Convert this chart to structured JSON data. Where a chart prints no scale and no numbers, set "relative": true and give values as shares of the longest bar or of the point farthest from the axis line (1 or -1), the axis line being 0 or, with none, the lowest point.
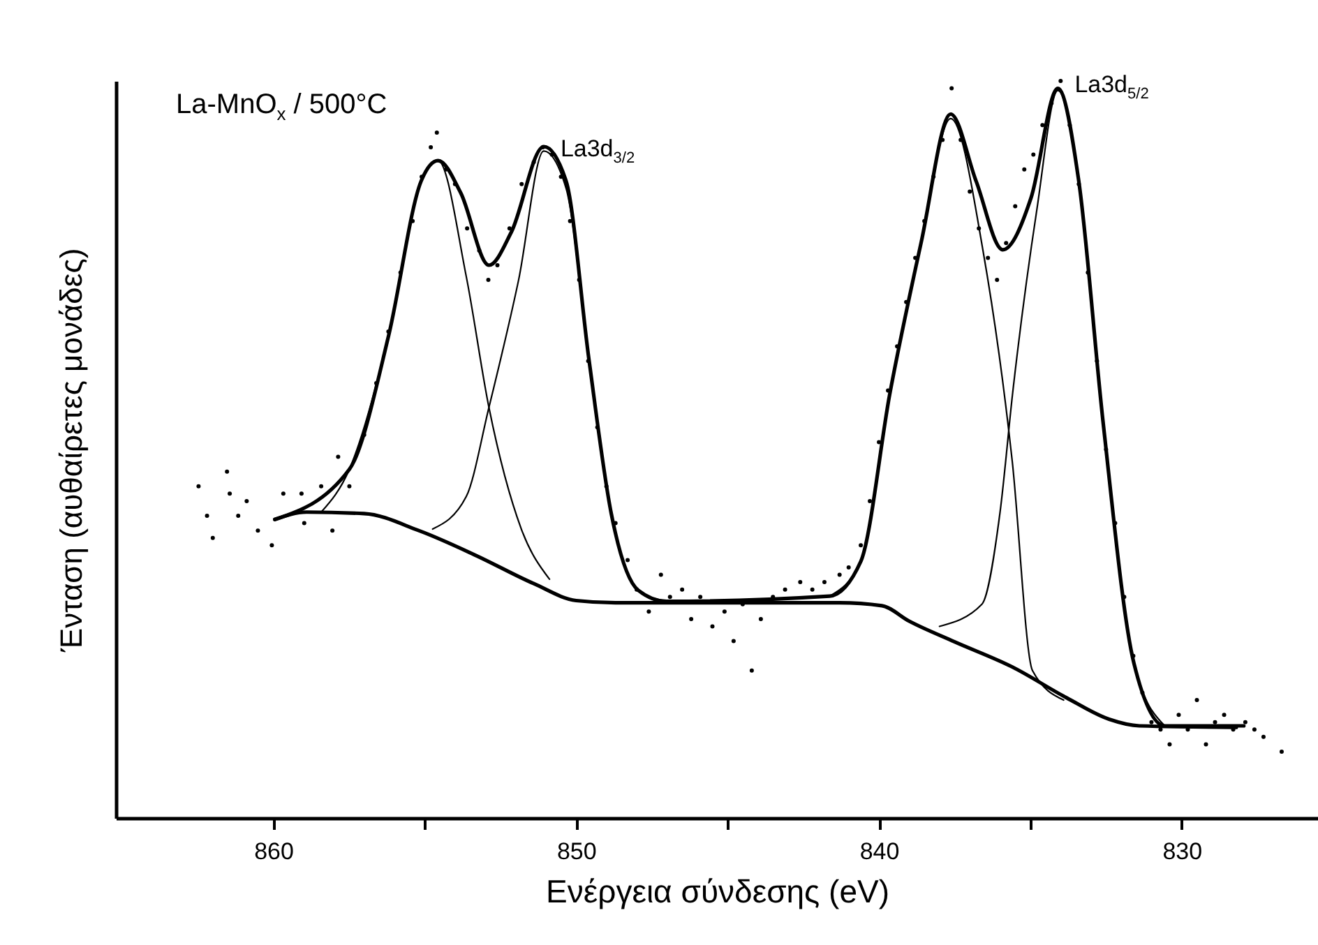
{
  "chart_data": {
    "type": "line",
    "title": "La-MnO$_{x}$ / 500°C",
    "xlabel": "Ενέργεια σύνδεσης (eV)",
    "ylabel": "Ένταση (αυθαίρετες μονάδες)",
    "relative": true,
    "xlim": [
      865.2,
      825.5
    ],
    "xticks": [
      860,
      {
        "value": 855,
        "label": null
      },
      850,
      {
        "value": 845,
        "label": null
      },
      840,
      {
        "value": 835,
        "label": null
      },
      830
    ],
    "annotations": [
      {
        "text": "La3d$_{3/2}$",
        "x": 851.07,
        "y": 0.91
      },
      {
        "text": "La3d$_{5/2}$",
        "x": 834.09,
        "y": 0.996
      }
    ],
    "series": [
      {
        "type": "scatter",
        "marker": "circle",
        "color": "#000000",
        "x": [
          862.47,
          862.19,
          862.0,
          861.53,
          861.44,
          861.16,
          860.88,
          860.51,
          860.05,
          859.67,
          859.07,
          858.98,
          858.42,
          858.05,
          857.86,
          857.49,
          857.0,
          856.6,
          856.2,
          855.8,
          855.4,
          855.1,
          854.8,
          854.6,
          854.3,
          854.0,
          853.6,
          853.2,
          852.9,
          852.6,
          852.2,
          851.8,
          851.4,
          851.1,
          850.8,
          850.5,
          850.2,
          849.9,
          849.6,
          849.3,
          849.0,
          848.7,
          848.3,
          848.0,
          847.6,
          847.2,
          846.9,
          846.5,
          846.2,
          845.9,
          845.5,
          845.1,
          844.8,
          844.5,
          844.2,
          843.9,
          843.5,
          843.1,
          842.6,
          842.2,
          841.8,
          841.3,
          841.0,
          840.6,
          840.3,
          840.0,
          839.7,
          839.4,
          839.1,
          838.8,
          838.5,
          838.2,
          837.9,
          837.6,
          837.3,
          837.0,
          836.7,
          836.4,
          836.1,
          835.8,
          835.5,
          835.2,
          834.9,
          834.6,
          834.3,
          834.0,
          833.7,
          833.4,
          833.1,
          832.8,
          832.5,
          832.2,
          831.9,
          831.6,
          831.3,
          831.0,
          830.7,
          830.4,
          830.1,
          829.8,
          829.5,
          829.2,
          828.9,
          828.6,
          828.3,
          827.9,
          827.6,
          827.3,
          826.7
        ],
        "values": [
          0.45,
          0.41,
          0.38,
          0.47,
          0.44,
          0.41,
          0.43,
          0.39,
          0.37,
          0.44,
          0.44,
          0.4,
          0.45,
          0.39,
          0.49,
          0.45,
          0.52,
          0.59,
          0.66,
          0.74,
          0.81,
          0.87,
          0.91,
          0.93,
          0.88,
          0.86,
          0.8,
          0.77,
          0.73,
          0.75,
          0.8,
          0.86,
          0.89,
          0.91,
          0.9,
          0.87,
          0.81,
          0.73,
          0.62,
          0.53,
          0.45,
          0.4,
          0.35,
          0.31,
          0.28,
          0.33,
          0.3,
          0.31,
          0.27,
          0.3,
          0.26,
          0.28,
          0.24,
          0.29,
          0.2,
          0.27,
          0.3,
          0.31,
          0.32,
          0.31,
          0.32,
          0.33,
          0.34,
          0.37,
          0.43,
          0.51,
          0.58,
          0.64,
          0.7,
          0.76,
          0.81,
          0.87,
          0.92,
          0.99,
          0.92,
          0.85,
          0.8,
          0.76,
          0.73,
          0.78,
          0.83,
          0.88,
          0.9,
          0.94,
          0.97,
          1,
          0.94,
          0.86,
          0.74,
          0.62,
          0.5,
          0.4,
          0.3,
          0.22,
          0.17,
          0.13,
          0.12,
          0.1,
          0.14,
          0.12,
          0.16,
          0.1,
          0.13,
          0.14,
          0.12,
          0.13,
          0.12,
          0.11,
          0.09
        ]
      },
      {
        "type": "line",
        "color": "#000000",
        "x": [
          859.95,
          857.49,
          856.19,
          855.12,
          854.56,
          853.81,
          852.88,
          852.14,
          851.07,
          850.33,
          849.58,
          848.84,
          847.95,
          847.02,
          841.63,
          840.6,
          839.63,
          838.6,
          837.63,
          836.79,
          835.91,
          834.98,
          834.09,
          833.4,
          832.6,
          831.58,
          830.56,
          827.95
        ],
        "values": [
          0.405,
          0.473,
          0.655,
          0.864,
          0.892,
          0.848,
          0.75,
          0.795,
          0.911,
          0.864,
          0.623,
          0.413,
          0.309,
          0.294,
          0.301,
          0.348,
          0.578,
          0.782,
          0.955,
          0.864,
          0.771,
          0.841,
          0.99,
          0.864,
          0.538,
          0.21,
          0.125,
          0.125
        ]
      },
      {
        "type": "line",
        "color": "#000000",
        "x": [
          859.95,
          858.9,
          857.0,
          855.2,
          853.3,
          851.4,
          850.0,
          848.7,
          845.9,
          841.3,
          839.9,
          839.0,
          837.5,
          835.6,
          833.8,
          832.4,
          831.4,
          828.2
        ],
        "values": [
          0.405,
          0.415,
          0.413,
          0.39,
          0.356,
          0.318,
          0.295,
          0.292,
          0.292,
          0.292,
          0.288,
          0.267,
          0.239,
          0.205,
          0.163,
          0.134,
          0.125,
          0.123
        ]
      },
      {
        "type": "line",
        "color": "#000000",
        "x": [
          858.42,
          857.49,
          856.19,
          855.12,
          854.56,
          853.63,
          852.88,
          851.81,
          850.88
        ],
        "values": [
          0.415,
          0.473,
          0.655,
          0.864,
          0.892,
          0.735,
          0.557,
          0.392,
          0.324
        ]
      },
      {
        "type": "line",
        "color": "#000000",
        "x": [
          854.74,
          853.63,
          852.88,
          851.9,
          851.07,
          850.33,
          849.58,
          848.84,
          847.95,
          847.02
        ],
        "values": [
          0.392,
          0.436,
          0.557,
          0.73,
          0.905,
          0.854,
          0.623,
          0.413,
          0.309,
          0.294
        ]
      },
      {
        "type": "line",
        "color": "#000000",
        "x": [
          841.63,
          840.6,
          839.63,
          838.6,
          837.63,
          836.56,
          835.6,
          834.93,
          833.9
        ],
        "values": [
          0.301,
          0.348,
          0.578,
          0.782,
          0.949,
          0.769,
          0.485,
          0.2,
          0.16
        ]
      },
      {
        "type": "line",
        "color": "#000000",
        "x": [
          838.0,
          836.6,
          836.0,
          835.58,
          834.79,
          834.09,
          833.4,
          832.6,
          831.58,
          830.56
        ],
        "values": [
          0.26,
          0.29,
          0.415,
          0.578,
          0.824,
          0.987,
          0.86,
          0.54,
          0.21,
          0.125
        ]
      }
    ]
  }
}
